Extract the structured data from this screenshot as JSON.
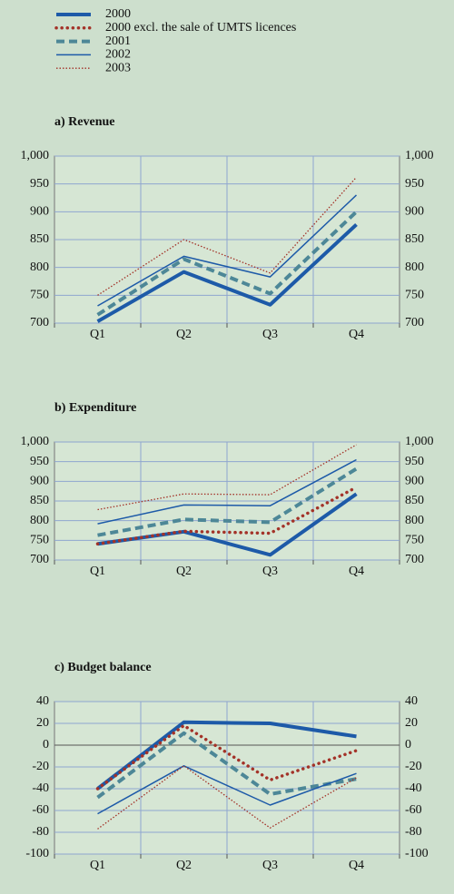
{
  "chart_data": [
    {
      "type": "line",
      "title": "a) Revenue",
      "categories": [
        "Q1",
        "Q2",
        "Q3",
        "Q4"
      ],
      "ylim": [
        700,
        1000
      ],
      "yticks": [
        700,
        750,
        800,
        850,
        900,
        950,
        {
          "value": 1000,
          "label": "1,000"
        }
      ],
      "grid": true,
      "series": [
        {
          "name": "2000",
          "color": "#1d5aa8",
          "linestyle": "solid",
          "linewidth": 4,
          "values": [
            703,
            792,
            733,
            877
          ]
        },
        {
          "name": "2001",
          "color": "#4d8797",
          "linestyle": "dashed",
          "linewidth": 4,
          "values": [
            715,
            815,
            753,
            900
          ]
        },
        {
          "name": "2002",
          "color": "#1d5aa8",
          "linestyle": "solid",
          "linewidth": 1.5,
          "values": [
            731,
            820,
            783,
            930
          ]
        },
        {
          "name": "2003",
          "color": "#a33228",
          "linestyle": "dotted",
          "linewidth": 1.3,
          "values": [
            750,
            850,
            790,
            962
          ]
        }
      ]
    },
    {
      "type": "line",
      "title": "b) Expenditure",
      "categories": [
        "Q1",
        "Q2",
        "Q3",
        "Q4"
      ],
      "ylim": [
        700,
        1000
      ],
      "yticks": [
        700,
        750,
        800,
        850,
        900,
        950,
        {
          "value": 1000,
          "label": "1,000"
        }
      ],
      "grid": true,
      "series": [
        {
          "name": "2000",
          "color": "#1d5aa8",
          "linestyle": "solid",
          "linewidth": 4,
          "values": [
            741,
            772,
            713,
            868
          ]
        },
        {
          "name": "2000 excl. the sale of UMTS licences",
          "color": "#a33228",
          "linestyle": "dotted",
          "linewidth": 3.5,
          "values": [
            741,
            773,
            768,
            885
          ]
        },
        {
          "name": "2001",
          "color": "#4d8797",
          "linestyle": "dashed",
          "linewidth": 4,
          "values": [
            763,
            803,
            796,
            932
          ]
        },
        {
          "name": "2002",
          "color": "#1d5aa8",
          "linestyle": "solid",
          "linewidth": 1.5,
          "values": [
            792,
            840,
            838,
            955
          ]
        },
        {
          "name": "2003",
          "color": "#a33228",
          "linestyle": "dotted",
          "linewidth": 1.3,
          "values": [
            828,
            868,
            866,
            993
          ]
        }
      ]
    },
    {
      "type": "line",
      "title": "c) Budget balance",
      "categories": [
        "Q1",
        "Q2",
        "Q3",
        "Q4"
      ],
      "ylim": [
        -100,
        40
      ],
      "yticks": [
        -100,
        -80,
        -60,
        -40,
        -20,
        0,
        20,
        40
      ],
      "grid": true,
      "series": [
        {
          "name": "2000",
          "color": "#1d5aa8",
          "linestyle": "solid",
          "linewidth": 4,
          "values": [
            -40,
            21,
            20,
            8
          ]
        },
        {
          "name": "2000 excl. the sale of UMTS licences",
          "color": "#a33228",
          "linestyle": "dotted",
          "linewidth": 3.5,
          "values": [
            -40,
            18,
            -32,
            -5
          ]
        },
        {
          "name": "2001",
          "color": "#4d8797",
          "linestyle": "dashed",
          "linewidth": 4,
          "values": [
            -48,
            11,
            -45,
            -31
          ]
        },
        {
          "name": "2002",
          "color": "#1d5aa8",
          "linestyle": "solid",
          "linewidth": 1.5,
          "values": [
            -63,
            -19,
            -55,
            -26
          ]
        },
        {
          "name": "2003",
          "color": "#a33228",
          "linestyle": "dotted",
          "linewidth": 1.3,
          "values": [
            -77,
            -19,
            -76,
            -30
          ]
        }
      ]
    }
  ]
}
